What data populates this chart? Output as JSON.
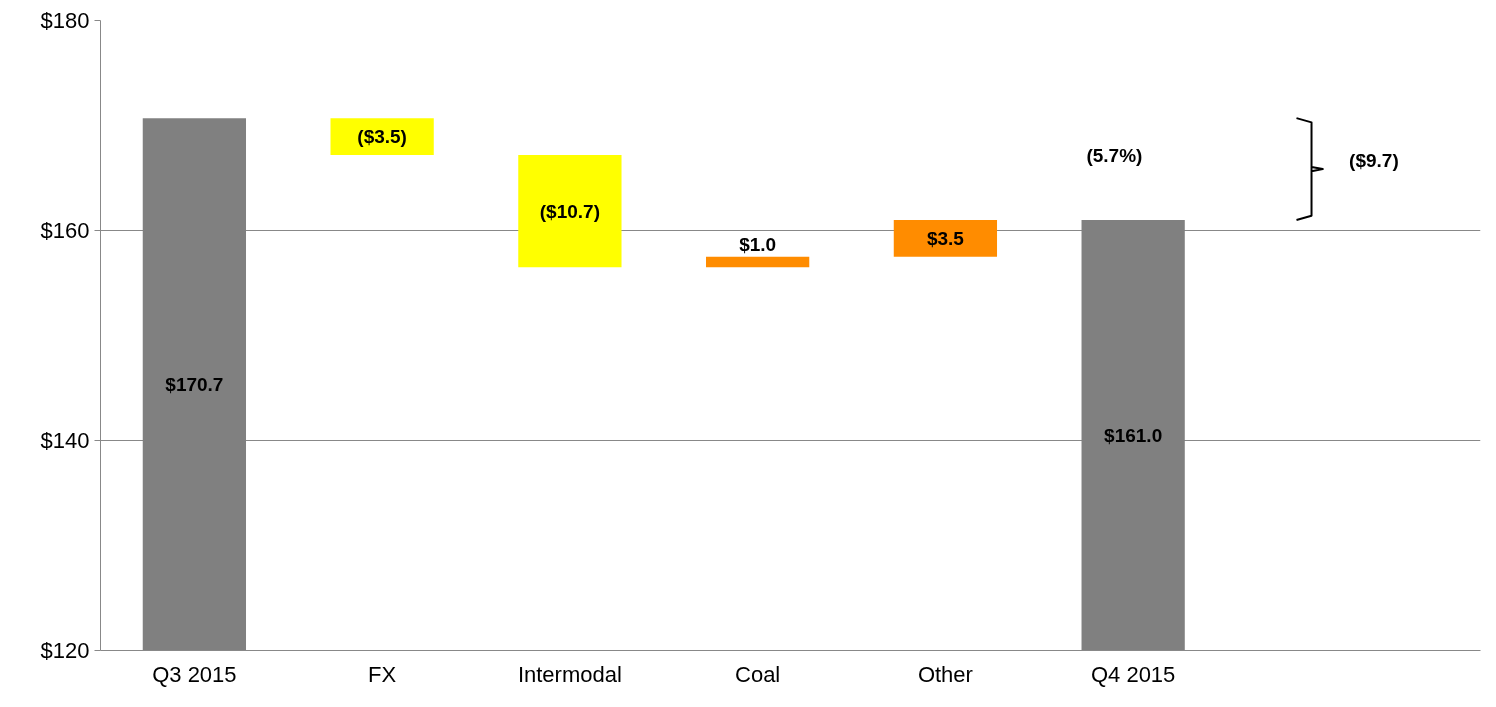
{
  "chart_data": {
    "type": "bar",
    "categories": [
      "Q3 2015",
      "FX",
      "Intermodal",
      "Coal",
      "Other",
      "Q4 2015"
    ],
    "values": [
      170.7,
      -3.5,
      -10.7,
      1.0,
      3.5,
      161.0
    ],
    "base": [
      0,
      170.7,
      167.2,
      156.5,
      157.5,
      0
    ],
    "colors": [
      "#808080",
      "#ffff00",
      "#ffff00",
      "#ff8c00",
      "#ff8c00",
      "#808080"
    ],
    "value_labels": [
      "$170.7",
      "($3.5)",
      "($10.7)",
      "$1.0",
      "$3.5",
      "$161.0"
    ],
    "annotations": [
      "(5.7%)",
      "($9.7)"
    ],
    "ylim": [
      120,
      180
    ],
    "yticks": [
      {
        "value": 120,
        "label": "$120"
      },
      {
        "value": 140,
        "label": "$140"
      },
      {
        "value": 160,
        "label": "$160"
      },
      {
        "value": 180,
        "label": "$180"
      }
    ],
    "grid": "y"
  }
}
